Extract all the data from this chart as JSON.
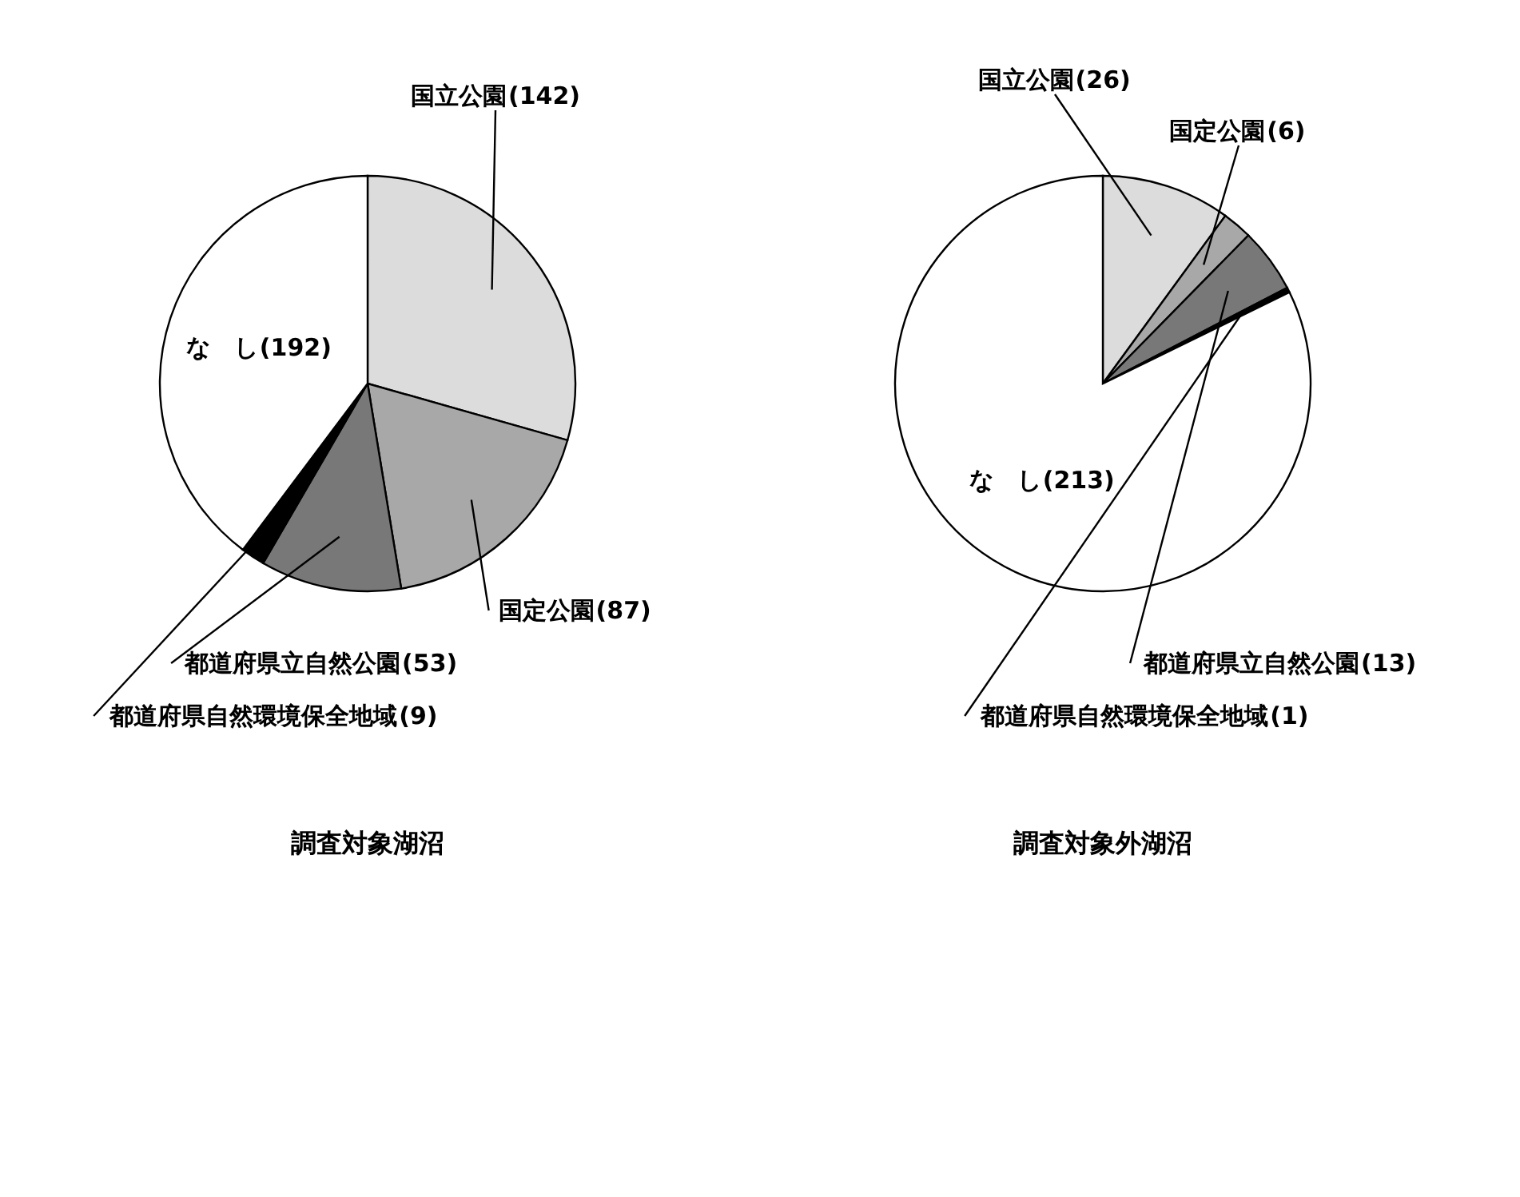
{
  "chart_data": [
    {
      "type": "pie",
      "title": "調査対象湖沼",
      "categories": [
        "国立公園",
        "国定公園",
        "都道府県立自然公園",
        "都道府県自然環境保全地域",
        "な　し"
      ],
      "values": [
        142,
        87,
        53,
        9,
        192
      ],
      "colors": [
        "#dcdcdc",
        "#a8a8a8",
        "#787878",
        "#000000",
        "#ffffff"
      ],
      "value_labels": [
        "(142)",
        "(87)",
        "(53)",
        "(9)",
        "(192)"
      ]
    },
    {
      "type": "pie",
      "title": "調査対象外湖沼",
      "categories": [
        "国立公園",
        "国定公園",
        "都道府県立自然公園",
        "都道府県自然環境保全地域",
        "な　し"
      ],
      "values": [
        26,
        6,
        13,
        1,
        213
      ],
      "colors": [
        "#dcdcdc",
        "#a8a8a8",
        "#787878",
        "#000000",
        "#ffffff"
      ],
      "value_labels": [
        "(26)",
        "(6)",
        "(13)",
        "(1)",
        "(213)"
      ]
    }
  ]
}
